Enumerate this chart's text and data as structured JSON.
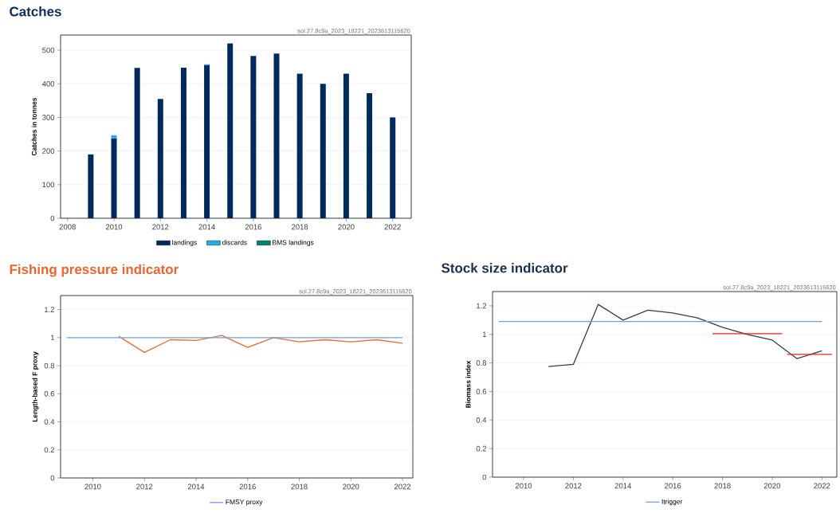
{
  "chart_data": [
    {
      "type": "bar",
      "title": "Catches",
      "ylabel": "Catches in tonnes",
      "stacked": true,
      "grid": "y",
      "legend": "bottom",
      "annotations": [
        "sol.27.8c9a_2023_18221_2023613115620"
      ],
      "x": [
        2009,
        2010,
        2011,
        2012,
        2013,
        2014,
        2015,
        2016,
        2017,
        2018,
        2019,
        2020,
        2021,
        2022
      ],
      "series": [
        {
          "name": "landings",
          "color": "#002a5c",
          "values": [
            190,
            237,
            447,
            355,
            448,
            455,
            520,
            483,
            490,
            430,
            400,
            430,
            372,
            300
          ]
        },
        {
          "name": "discards",
          "color": "#29aae1",
          "values": [
            0,
            10,
            0,
            0,
            0,
            3,
            0,
            0,
            0,
            0,
            0,
            0,
            0,
            0
          ]
        },
        {
          "name": "BMS landings",
          "color": "#00826f",
          "values": [
            0,
            0,
            0,
            0,
            0,
            0,
            0,
            0,
            0,
            0,
            0,
            0,
            0,
            0
          ]
        }
      ],
      "xlim": [
        2007.7,
        2022.8
      ],
      "ylim": [
        0,
        545
      ],
      "xticks": [
        2008,
        2010,
        2012,
        2014,
        2016,
        2018,
        2020,
        2022
      ],
      "yticks": [
        0,
        100,
        200,
        300,
        400,
        500
      ]
    },
    {
      "type": "line",
      "title": "Fishing pressure indicator",
      "ylabel": "Length-based F proxy",
      "grid": "y",
      "legend": "bottom",
      "annotations": [
        "sol.27.8c9a_2023_18221_2023613115620"
      ],
      "series": [
        {
          "color": "#f26b2a",
          "x": [
            2011,
            2012,
            2013,
            2014,
            2015,
            2016,
            2017,
            2018,
            2019,
            2020,
            2021,
            2022
          ],
          "values": [
            1.01,
            0.895,
            0.985,
            0.98,
            1.015,
            0.93,
            1.0,
            0.97,
            0.985,
            0.97,
            0.985,
            0.96
          ]
        },
        {
          "name": "FMSY proxy",
          "color": "#6c9ef8",
          "x": [
            2009,
            2022
          ],
          "values": [
            1,
            1
          ]
        }
      ],
      "xlim": [
        2008.75,
        2022.4
      ],
      "ylim": [
        0,
        1.3
      ],
      "xticks": [
        2010,
        2012,
        2014,
        2016,
        2018,
        2020,
        2022
      ],
      "yticks": [
        0,
        0.2,
        0.4,
        0.6,
        0.8,
        1,
        1.2
      ]
    },
    {
      "type": "line",
      "title": "Stock size indicator",
      "ylabel": "Biomass index",
      "grid": "y",
      "legend": "bottom",
      "annotations": [
        "sol.27.8c9a_2023_18221_2023613115620"
      ],
      "series": [
        {
          "color": "#2b3f5f",
          "x": [
            2011,
            2012,
            2013,
            2014,
            2015,
            2016,
            2017,
            2018,
            2019,
            2020,
            2021,
            2022
          ],
          "values": [
            0.775,
            0.79,
            1.21,
            1.1,
            1.17,
            1.15,
            1.115,
            1.05,
            1.0,
            0.96,
            0.83,
            0.885
          ]
        },
        {
          "name": "Itrigger",
          "color": "#6c9ef8",
          "x": [
            2009,
            2022
          ],
          "values": [
            1.09,
            1.09
          ]
        },
        {
          "color": "#ee2020",
          "x": [
            2017.6,
            2020.4
          ],
          "values": [
            1.005,
            1.005
          ]
        },
        {
          "color": "#ee2020",
          "x": [
            2020.6,
            2022.4
          ],
          "values": [
            0.86,
            0.86
          ]
        }
      ],
      "xlim": [
        2008.75,
        2022.6
      ],
      "ylim": [
        0,
        1.3
      ],
      "xticks": [
        2010,
        2012,
        2014,
        2016,
        2018,
        2020,
        2022
      ],
      "yticks": [
        0,
        0.2,
        0.4,
        0.6,
        0.8,
        1,
        1.2
      ]
    }
  ]
}
